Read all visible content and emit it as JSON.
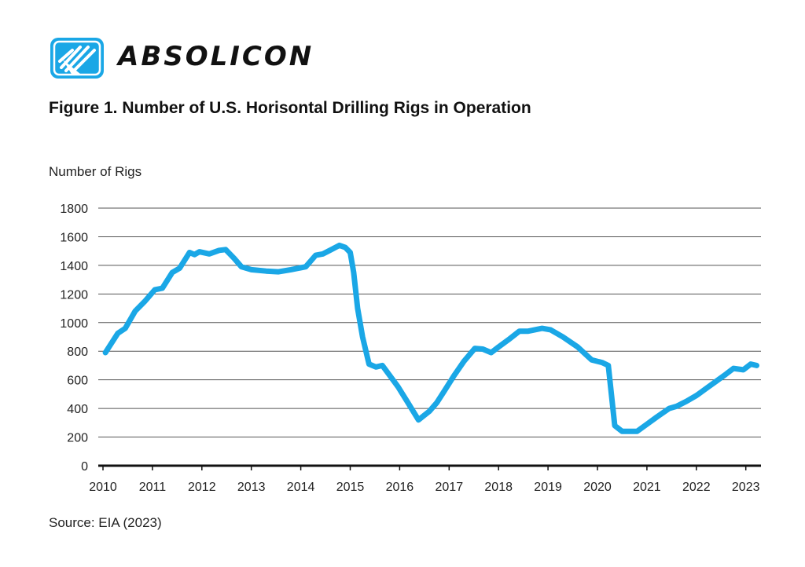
{
  "brand": {
    "name": "ABSOLICON",
    "logo_icon": "absolicon-logo-icon",
    "color": "#1aa7e6"
  },
  "figure": {
    "title": "Figure 1. Number of U.S. Horisontal Drilling Rigs in Operation",
    "source": "Source: EIA (2023)"
  },
  "chart_data": {
    "type": "line",
    "title": "Figure 1. Number of U.S. Horisontal Drilling Rigs in Operation",
    "ylabel": "Number of Rigs",
    "xlabel": "",
    "ylim": [
      0,
      1800
    ],
    "xlim": [
      2010,
      2023.3
    ],
    "yticks": [
      0,
      200,
      400,
      600,
      800,
      1000,
      1200,
      1400,
      1600,
      1800
    ],
    "xticks": [
      2010,
      2011,
      2012,
      2013,
      2014,
      2015,
      2016,
      2017,
      2018,
      2019,
      2020,
      2021,
      2022,
      2023
    ],
    "grid": "horizontal",
    "line_color": "#1aa7e6",
    "series": [
      {
        "x": [
          2010.05,
          2010.3,
          2010.45,
          2010.65,
          2010.85,
          2011.05,
          2011.2,
          2011.4,
          2011.55,
          2011.75,
          2011.85,
          2011.95,
          2012.15,
          2012.35,
          2012.48,
          2012.65,
          2012.8,
          2013.0,
          2013.3,
          2013.55,
          2013.8,
          2014.1,
          2014.3,
          2014.45,
          2014.62,
          2014.78,
          2014.9,
          2015.0,
          2015.07,
          2015.15,
          2015.25,
          2015.38,
          2015.52,
          2015.65,
          2015.8,
          2015.97,
          2016.15,
          2016.38,
          2016.6,
          2016.75,
          2016.9,
          2017.1,
          2017.3,
          2017.52,
          2017.68,
          2017.85,
          2018.0,
          2018.2,
          2018.42,
          2018.6,
          2018.88,
          2019.05,
          2019.3,
          2019.6,
          2019.88,
          2020.1,
          2020.22,
          2020.35,
          2020.5,
          2020.65,
          2020.8,
          2021.0,
          2021.2,
          2021.45,
          2021.6,
          2021.8,
          2022.0,
          2022.2,
          2022.4,
          2022.6,
          2022.75,
          2022.95,
          2023.1,
          2023.22
        ],
        "y": [
          790,
          925,
          960,
          1080,
          1150,
          1230,
          1240,
          1350,
          1380,
          1490,
          1475,
          1495,
          1480,
          1505,
          1510,
          1450,
          1390,
          1370,
          1360,
          1355,
          1370,
          1390,
          1470,
          1480,
          1510,
          1540,
          1525,
          1490,
          1350,
          1100,
          900,
          710,
          690,
          700,
          630,
          550,
          450,
          320,
          380,
          440,
          520,
          630,
          730,
          820,
          815,
          790,
          830,
          880,
          940,
          940,
          960,
          950,
          900,
          830,
          740,
          720,
          700,
          280,
          240,
          240,
          240,
          290,
          340,
          400,
          415,
          450,
          490,
          540,
          590,
          640,
          680,
          670,
          710,
          700
        ]
      }
    ]
  }
}
